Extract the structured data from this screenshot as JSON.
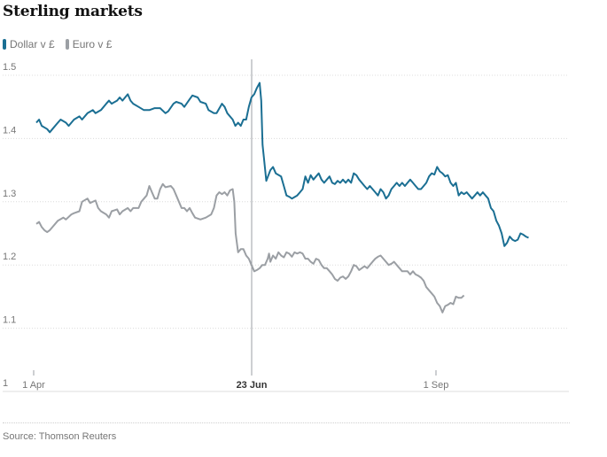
{
  "title": "Sterling markets",
  "source": "Source: Thomson Reuters",
  "chart_data": {
    "type": "line",
    "title": "Sterling markets",
    "ylim": [
      1,
      1.55
    ],
    "xlim": [
      0,
      199
    ],
    "yticks": [
      {
        "value": 1.5,
        "label": "1.5"
      },
      {
        "value": 1.4,
        "label": "1.4"
      },
      {
        "value": 1.3,
        "label": "1.3"
      },
      {
        "value": 1.2,
        "label": "1.2"
      },
      {
        "value": 1.1,
        "label": "1.1"
      },
      {
        "value": 1.0,
        "label": "1"
      }
    ],
    "xticks": [
      {
        "label": "1 Apr",
        "bold": false
      },
      {
        "label": "23 Jun",
        "bold": true
      },
      {
        "label": "1 Sep",
        "bold": false
      }
    ],
    "marker": {
      "label": "23 Jun"
    },
    "series": [
      {
        "name": "Dollar v £",
        "color": "#1b6f93",
        "points": [
          [
            1,
            1.425
          ],
          [
            2,
            1.43
          ],
          [
            3,
            1.42
          ],
          [
            5,
            1.415
          ],
          [
            6,
            1.41
          ],
          [
            7,
            1.415
          ],
          [
            9,
            1.425
          ],
          [
            10,
            1.43
          ],
          [
            12,
            1.425
          ],
          [
            13,
            1.42
          ],
          [
            15,
            1.43
          ],
          [
            17,
            1.435
          ],
          [
            18,
            1.43
          ],
          [
            20,
            1.44
          ],
          [
            22,
            1.445
          ],
          [
            23,
            1.44
          ],
          [
            25,
            1.445
          ],
          [
            27,
            1.455
          ],
          [
            28,
            1.46
          ],
          [
            29,
            1.455
          ],
          [
            31,
            1.46
          ],
          [
            32,
            1.465
          ],
          [
            33,
            1.46
          ],
          [
            35,
            1.47
          ],
          [
            36,
            1.46
          ],
          [
            37,
            1.455
          ],
          [
            39,
            1.45
          ],
          [
            41,
            1.445
          ],
          [
            43,
            1.445
          ],
          [
            45,
            1.448
          ],
          [
            47,
            1.448
          ],
          [
            49,
            1.44
          ],
          [
            50,
            1.443
          ],
          [
            52,
            1.455
          ],
          [
            53,
            1.458
          ],
          [
            55,
            1.455
          ],
          [
            56,
            1.45
          ],
          [
            58,
            1.462
          ],
          [
            59,
            1.468
          ],
          [
            61,
            1.465
          ],
          [
            62,
            1.458
          ],
          [
            64,
            1.455
          ],
          [
            65,
            1.445
          ],
          [
            67,
            1.44
          ],
          [
            68,
            1.44
          ],
          [
            70,
            1.455
          ],
          [
            71,
            1.45
          ],
          [
            72,
            1.44
          ],
          [
            74,
            1.43
          ],
          [
            75,
            1.42
          ],
          [
            76,
            1.425
          ],
          [
            77,
            1.42
          ],
          [
            78,
            1.43
          ],
          [
            79,
            1.43
          ],
          [
            80,
            1.45
          ],
          [
            81,
            1.465
          ],
          [
            82,
            1.47
          ],
          [
            83,
            1.48
          ],
          [
            84,
            1.488
          ],
          [
            84.6,
            1.46
          ],
          [
            85.1,
            1.39
          ],
          [
            85.6,
            1.37
          ],
          [
            86.5,
            1.333
          ],
          [
            88,
            1.35
          ],
          [
            89,
            1.355
          ],
          [
            90,
            1.345
          ],
          [
            92,
            1.34
          ],
          [
            93,
            1.325
          ],
          [
            94,
            1.31
          ],
          [
            95,
            1.308
          ],
          [
            96,
            1.305
          ],
          [
            98,
            1.31
          ],
          [
            99,
            1.315
          ],
          [
            100,
            1.32
          ],
          [
            101,
            1.34
          ],
          [
            102,
            1.33
          ],
          [
            103,
            1.342
          ],
          [
            104,
            1.335
          ],
          [
            105,
            1.34
          ],
          [
            106,
            1.345
          ],
          [
            107,
            1.335
          ],
          [
            108,
            1.33
          ],
          [
            109,
            1.335
          ],
          [
            110,
            1.34
          ],
          [
            111,
            1.33
          ],
          [
            112,
            1.328
          ],
          [
            113,
            1.333
          ],
          [
            114,
            1.33
          ],
          [
            115,
            1.335
          ],
          [
            116,
            1.33
          ],
          [
            117,
            1.335
          ],
          [
            118,
            1.33
          ],
          [
            119,
            1.345
          ],
          [
            120,
            1.342
          ],
          [
            121,
            1.335
          ],
          [
            122,
            1.33
          ],
          [
            123,
            1.325
          ],
          [
            124,
            1.32
          ],
          [
            125,
            1.325
          ],
          [
            126,
            1.32
          ],
          [
            127,
            1.315
          ],
          [
            128,
            1.31
          ],
          [
            129,
            1.32
          ],
          [
            130,
            1.315
          ],
          [
            131,
            1.305
          ],
          [
            132,
            1.31
          ],
          [
            133,
            1.32
          ],
          [
            134,
            1.325
          ],
          [
            135,
            1.33
          ],
          [
            136,
            1.325
          ],
          [
            137,
            1.33
          ],
          [
            138,
            1.325
          ],
          [
            139,
            1.33
          ],
          [
            140,
            1.335
          ],
          [
            141,
            1.33
          ],
          [
            142,
            1.325
          ],
          [
            143,
            1.32
          ],
          [
            144,
            1.32
          ],
          [
            145,
            1.325
          ],
          [
            146,
            1.33
          ],
          [
            147,
            1.34
          ],
          [
            148,
            1.345
          ],
          [
            149,
            1.343
          ],
          [
            150,
            1.355
          ],
          [
            151,
            1.348
          ],
          [
            152,
            1.345
          ],
          [
            153,
            1.34
          ],
          [
            154,
            1.342
          ],
          [
            155,
            1.33
          ],
          [
            156,
            1.325
          ],
          [
            157,
            1.33
          ],
          [
            158,
            1.31
          ],
          [
            159,
            1.315
          ],
          [
            160,
            1.312
          ],
          [
            161,
            1.315
          ],
          [
            162,
            1.31
          ],
          [
            163,
            1.305
          ],
          [
            164,
            1.31
          ],
          [
            165,
            1.315
          ],
          [
            166,
            1.31
          ],
          [
            167,
            1.315
          ],
          [
            168,
            1.31
          ],
          [
            169,
            1.305
          ],
          [
            170,
            1.29
          ],
          [
            171,
            1.285
          ],
          [
            172,
            1.27
          ],
          [
            173,
            1.262
          ],
          [
            174,
            1.25
          ],
          [
            175,
            1.23
          ],
          [
            176,
            1.235
          ],
          [
            177,
            1.245
          ],
          [
            178,
            1.24
          ],
          [
            179,
            1.238
          ],
          [
            180,
            1.24
          ],
          [
            181,
            1.25
          ],
          [
            182,
            1.248
          ],
          [
            183,
            1.245
          ],
          [
            184,
            1.243
          ]
        ]
      },
      {
        "name": "Euro v £",
        "color": "#9b9fa4",
        "points": [
          [
            1,
            1.265
          ],
          [
            2,
            1.268
          ],
          [
            3,
            1.26
          ],
          [
            4,
            1.255
          ],
          [
            5,
            1.252
          ],
          [
            6,
            1.255
          ],
          [
            7,
            1.26
          ],
          [
            9,
            1.27
          ],
          [
            11,
            1.275
          ],
          [
            12,
            1.272
          ],
          [
            14,
            1.28
          ],
          [
            15,
            1.282
          ],
          [
            17,
            1.285
          ],
          [
            18,
            1.3
          ],
          [
            20,
            1.305
          ],
          [
            21,
            1.298
          ],
          [
            23,
            1.302
          ],
          [
            24,
            1.29
          ],
          [
            25,
            1.285
          ],
          [
            27,
            1.28
          ],
          [
            28,
            1.275
          ],
          [
            29,
            1.285
          ],
          [
            31,
            1.288
          ],
          [
            32,
            1.28
          ],
          [
            33,
            1.285
          ],
          [
            35,
            1.29
          ],
          [
            36,
            1.285
          ],
          [
            37,
            1.29
          ],
          [
            39,
            1.29
          ],
          [
            40,
            1.3
          ],
          [
            42,
            1.31
          ],
          [
            43,
            1.325
          ],
          [
            44,
            1.315
          ],
          [
            45,
            1.305
          ],
          [
            46,
            1.305
          ],
          [
            47,
            1.32
          ],
          [
            48,
            1.328
          ],
          [
            49,
            1.323
          ],
          [
            51,
            1.325
          ],
          [
            52,
            1.32
          ],
          [
            53,
            1.31
          ],
          [
            54,
            1.3
          ],
          [
            55,
            1.29
          ],
          [
            56,
            1.29
          ],
          [
            57,
            1.285
          ],
          [
            58,
            1.29
          ],
          [
            59,
            1.282
          ],
          [
            60,
            1.275
          ],
          [
            62,
            1.272
          ],
          [
            64,
            1.275
          ],
          [
            66,
            1.28
          ],
          [
            67,
            1.29
          ],
          [
            68,
            1.31
          ],
          [
            69,
            1.315
          ],
          [
            70,
            1.312
          ],
          [
            71,
            1.315
          ],
          [
            72,
            1.31
          ],
          [
            73,
            1.318
          ],
          [
            74,
            1.32
          ],
          [
            74.6,
            1.3
          ],
          [
            75.1,
            1.25
          ],
          [
            76,
            1.22
          ],
          [
            77,
            1.225
          ],
          [
            78,
            1.225
          ],
          [
            79,
            1.215
          ],
          [
            80,
            1.21
          ],
          [
            81,
            1.2
          ],
          [
            82,
            1.19
          ],
          [
            83,
            1.192
          ],
          [
            84,
            1.195
          ],
          [
            85,
            1.2
          ],
          [
            86,
            1.2
          ],
          [
            87,
            1.21
          ],
          [
            87.5,
            1.218
          ],
          [
            88,
            1.205
          ],
          [
            89,
            1.215
          ],
          [
            90,
            1.21
          ],
          [
            91,
            1.22
          ],
          [
            92,
            1.215
          ],
          [
            93,
            1.212
          ],
          [
            94,
            1.22
          ],
          [
            95,
            1.218
          ],
          [
            96,
            1.213
          ],
          [
            97,
            1.22
          ],
          [
            98,
            1.218
          ],
          [
            99,
            1.22
          ],
          [
            100,
            1.218
          ],
          [
            101,
            1.21
          ],
          [
            102,
            1.21
          ],
          [
            103,
            1.205
          ],
          [
            104,
            1.202
          ],
          [
            105,
            1.21
          ],
          [
            106,
            1.208
          ],
          [
            107,
            1.2
          ],
          [
            108,
            1.195
          ],
          [
            109,
            1.195
          ],
          [
            110,
            1.19
          ],
          [
            111,
            1.185
          ],
          [
            112,
            1.178
          ],
          [
            113,
            1.175
          ],
          [
            114,
            1.18
          ],
          [
            115,
            1.182
          ],
          [
            116,
            1.178
          ],
          [
            117,
            1.182
          ],
          [
            118,
            1.19
          ],
          [
            119,
            1.2
          ],
          [
            120,
            1.198
          ],
          [
            121,
            1.192
          ],
          [
            122,
            1.195
          ],
          [
            123,
            1.198
          ],
          [
            124,
            1.195
          ],
          [
            125,
            1.2
          ],
          [
            126,
            1.205
          ],
          [
            127,
            1.21
          ],
          [
            128,
            1.213
          ],
          [
            129,
            1.215
          ],
          [
            130,
            1.21
          ],
          [
            131,
            1.205
          ],
          [
            132,
            1.2
          ],
          [
            133,
            1.202
          ],
          [
            134,
            1.205
          ],
          [
            135,
            1.2
          ],
          [
            136,
            1.195
          ],
          [
            137,
            1.19
          ],
          [
            138,
            1.19
          ],
          [
            139,
            1.19
          ],
          [
            140,
            1.185
          ],
          [
            141,
            1.19
          ],
          [
            142,
            1.185
          ],
          [
            143,
            1.183
          ],
          [
            144,
            1.18
          ],
          [
            145,
            1.175
          ],
          [
            146,
            1.165
          ],
          [
            147,
            1.16
          ],
          [
            148,
            1.155
          ],
          [
            149,
            1.15
          ],
          [
            150,
            1.14
          ],
          [
            151,
            1.135
          ],
          [
            152,
            1.125
          ],
          [
            153,
            1.135
          ],
          [
            154,
            1.137
          ],
          [
            155,
            1.14
          ],
          [
            156,
            1.138
          ],
          [
            157,
            1.15
          ],
          [
            158,
            1.148
          ],
          [
            159,
            1.148
          ],
          [
            160,
            1.152
          ]
        ]
      }
    ]
  }
}
